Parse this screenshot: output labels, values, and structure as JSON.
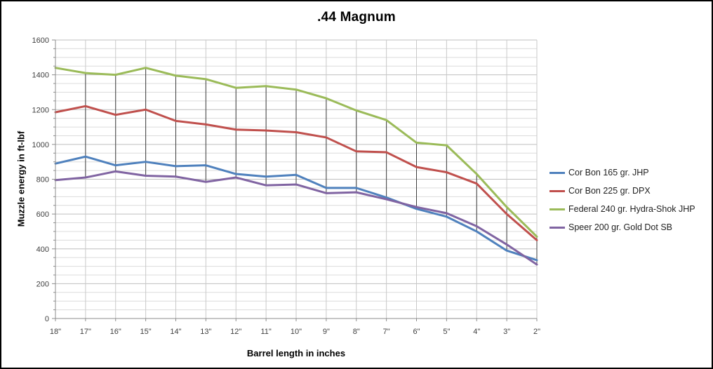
{
  "title": ".44 Magnum",
  "chart_data": {
    "type": "line",
    "title": ".44 Magnum",
    "xlabel": "Barrel length in inches",
    "ylabel": "Muzzle energy in ft-lbf",
    "categories": [
      "18\"",
      "17\"",
      "16\"",
      "15\"",
      "14\"",
      "13\"",
      "12\"",
      "11\"",
      "10\"",
      "9\"",
      "8\"",
      "7\"",
      "6\"",
      "5\"",
      "4\"",
      "3\"",
      "2\""
    ],
    "series": [
      {
        "name": "Cor Bon 165 gr. JHP",
        "color": "#4F81BD",
        "values": [
          890,
          930,
          880,
          900,
          875,
          880,
          830,
          815,
          825,
          750,
          750,
          695,
          630,
          585,
          500,
          390,
          335
        ]
      },
      {
        "name": "Cor Bon 225 gr. DPX",
        "color": "#C0504D",
        "values": [
          1185,
          1220,
          1170,
          1200,
          1135,
          1115,
          1085,
          1080,
          1070,
          1040,
          960,
          955,
          870,
          840,
          775,
          600,
          450
        ]
      },
      {
        "name": "Federal 240 gr. Hydra-Shok JHP",
        "color": "#9BBB59",
        "values": [
          1440,
          1410,
          1400,
          1440,
          1395,
          1375,
          1325,
          1335,
          1315,
          1265,
          1195,
          1140,
          1010,
          995,
          830,
          640,
          470
        ]
      },
      {
        "name": "Speer 200 gr. Gold Dot SB",
        "color": "#8064A2",
        "values": [
          795,
          810,
          845,
          820,
          815,
          785,
          810,
          765,
          770,
          720,
          725,
          685,
          640,
          605,
          530,
          425,
          310
        ]
      }
    ],
    "ylim": [
      0,
      1600
    ],
    "y_major_step": 200,
    "y_minor_step": 50,
    "y_tick_labels": [
      "0",
      "200",
      "400",
      "600",
      "800",
      "1000",
      "1200",
      "1400",
      "1600"
    ],
    "grid": true,
    "high_low_lines": true,
    "legend_position": "right"
  },
  "colors": {
    "background": "#FFFFFF",
    "border": "#000000",
    "grid_minor": "#DCDCDC",
    "grid_major": "#BFBFBF",
    "grid_vertical": "#C9C9C9",
    "axis_line": "#8C8C8C",
    "tick_label": "#3F3F3F",
    "high_low_line": "#404040",
    "series_line_width": 3
  }
}
